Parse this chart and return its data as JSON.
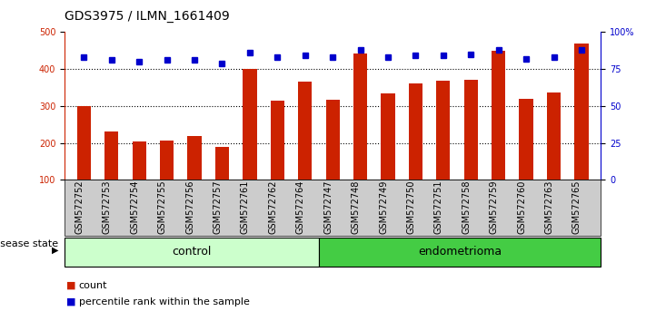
{
  "title": "GDS3975 / ILMN_1661409",
  "samples": [
    "GSM572752",
    "GSM572753",
    "GSM572754",
    "GSM572755",
    "GSM572756",
    "GSM572757",
    "GSM572761",
    "GSM572762",
    "GSM572764",
    "GSM572747",
    "GSM572748",
    "GSM572749",
    "GSM572750",
    "GSM572751",
    "GSM572758",
    "GSM572759",
    "GSM572760",
    "GSM572763",
    "GSM572765"
  ],
  "counts": [
    300,
    230,
    203,
    207,
    218,
    188,
    400,
    315,
    365,
    317,
    443,
    333,
    360,
    368,
    370,
    449,
    320,
    337,
    470
  ],
  "percentiles": [
    83,
    81,
    80,
    81,
    81,
    79,
    86,
    83,
    84,
    83,
    88,
    83,
    84,
    84,
    85,
    88,
    82,
    83,
    88
  ],
  "group_labels": [
    "control",
    "endometrioma"
  ],
  "group_control_count": 9,
  "group_endo_count": 10,
  "ylim_left": [
    100,
    500
  ],
  "ylim_right": [
    0,
    100
  ],
  "yticks_left": [
    100,
    200,
    300,
    400,
    500
  ],
  "yticks_right": [
    0,
    25,
    50,
    75,
    100
  ],
  "ytick_labels_right": [
    "0",
    "25",
    "50",
    "75",
    "100%"
  ],
  "grid_values": [
    200,
    300,
    400
  ],
  "bar_color": "#cc2200",
  "marker_color": "#0000cc",
  "control_bg": "#ccffcc",
  "endo_bg": "#44cc44",
  "label_bg": "#cccccc",
  "legend_count_label": "count",
  "legend_pct_label": "percentile rank within the sample",
  "disease_state_label": "disease state",
  "title_fontsize": 10,
  "tick_fontsize": 7
}
